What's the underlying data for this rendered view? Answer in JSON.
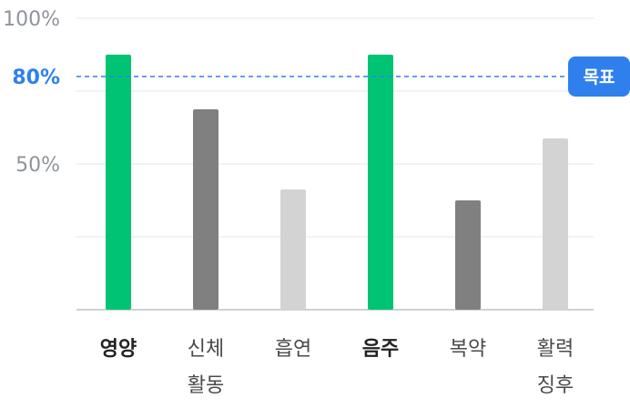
{
  "chart_data": {
    "type": "bar",
    "categories": [
      {
        "lines": [
          "영양"
        ],
        "bold": true,
        "color": "#00c473"
      },
      {
        "lines": [
          "신체",
          "활동"
        ],
        "bold": false,
        "color": "#808080"
      },
      {
        "lines": [
          "흡연"
        ],
        "bold": false,
        "color": "#d3d3d3"
      },
      {
        "lines": [
          "음주"
        ],
        "bold": true,
        "color": "#00c473"
      },
      {
        "lines": [
          "복약"
        ],
        "bold": false,
        "color": "#808080"
      },
      {
        "lines": [
          "활력",
          "징후"
        ],
        "bold": false,
        "color": "#d3d3d3"
      }
    ],
    "values": [
      87.5,
      68.75,
      41.25,
      87.5,
      37.5,
      58.75
    ],
    "ylim": [
      0,
      100
    ],
    "y_ticks": [
      {
        "value": 100,
        "label": "100%",
        "highlight": false
      },
      {
        "value": 80,
        "label": "80%",
        "highlight": true
      },
      {
        "value": 50,
        "label": "50%",
        "highlight": false
      }
    ],
    "gridlines": [
      100,
      75,
      50,
      25
    ],
    "target": {
      "value": 80,
      "label": "목표",
      "color": "#2f80ed"
    }
  }
}
